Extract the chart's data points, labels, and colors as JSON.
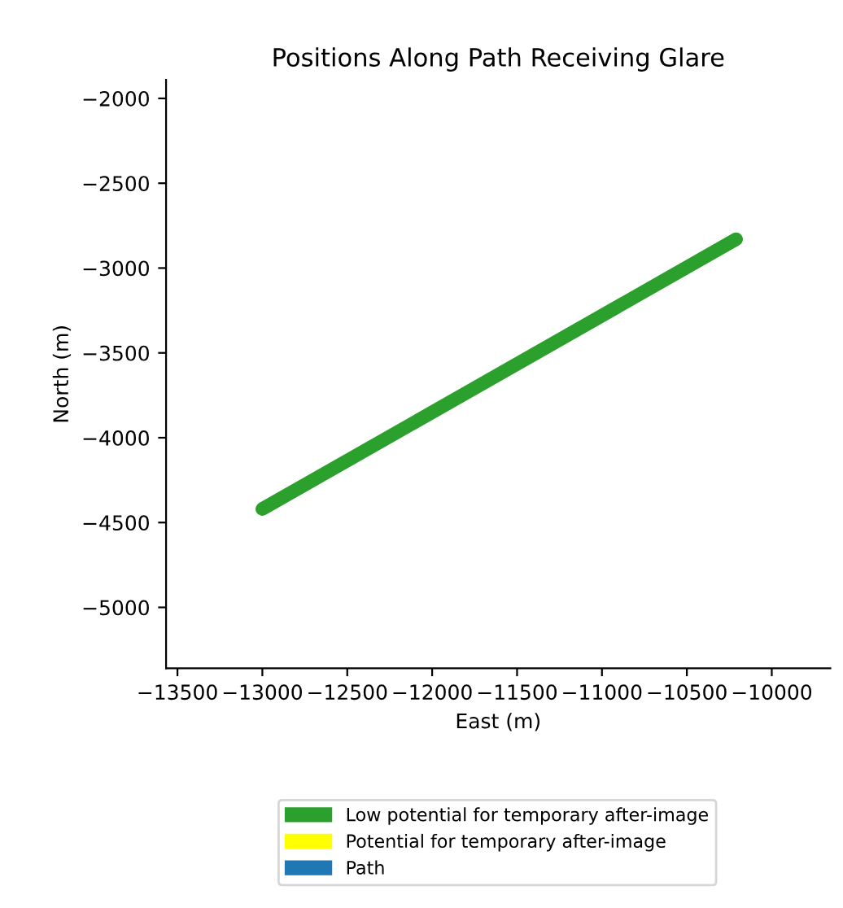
{
  "chart_data": {
    "type": "line",
    "title": "Positions Along Path Receiving Glare",
    "xlabel": "East (m)",
    "ylabel": "North (m)",
    "xlim": [
      -13567,
      -9655
    ],
    "ylim": [
      -5359,
      -1891
    ],
    "xticks": [
      -13500,
      -13000,
      -12500,
      -12000,
      -11500,
      -11000,
      -10500,
      -10000
    ],
    "yticks": [
      -5000,
      -4500,
      -4000,
      -3500,
      -3000,
      -2500,
      -2000
    ],
    "grid": false,
    "legend": "bottom",
    "marker": "none",
    "line_style": "solid",
    "series": [
      {
        "name": "Low potential for temporary after-image",
        "color": "#2ca02c",
        "x": [
          -13000,
          -10210
        ],
        "values": [
          -4420,
          -2830
        ]
      },
      {
        "name": "Potential for temporary after-image",
        "color": "#ffff00"
      },
      {
        "name": "Path",
        "color": "#1f77b4"
      }
    ]
  }
}
